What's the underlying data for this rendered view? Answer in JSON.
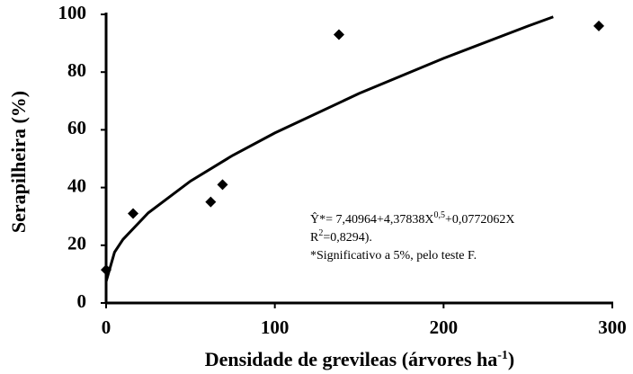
{
  "chart_data": {
    "type": "scatter",
    "x_label": {
      "text": "Densidade de grevileas (árvores ha",
      "sup": "-1",
      "end": ")"
    },
    "y_label": "Serapilheira (%)",
    "annotation": [
      [
        "Ŷ*= 7,40964+4,37838X",
        "0,5",
        "+0,0772062X"
      ],
      [
        "R",
        "2",
        "=0,8294)."
      ],
      [
        "*Significativo a 5%, pelo teste F."
      ]
    ],
    "xlim": [
      0,
      300
    ],
    "xticks": [
      0,
      100,
      200,
      300
    ],
    "ylim": [
      0,
      100
    ],
    "yticks": [
      0,
      20,
      40,
      60,
      80,
      100
    ],
    "series": [
      {
        "style": "markers",
        "color": "#000000",
        "x": [
          0,
          16,
          62,
          69,
          138,
          292
        ],
        "values": [
          11.5,
          31,
          35,
          41,
          93,
          96
        ]
      },
      {
        "style": "line",
        "color": "#000000",
        "x": [
          0,
          5,
          10,
          25,
          50,
          75,
          100,
          150,
          200,
          250,
          265
        ],
        "values": [
          7.41,
          17.59,
          22.03,
          31.23,
          42.23,
          51.12,
          58.91,
          72.61,
          84.77,
          95.94,
          99.14
        ]
      }
    ]
  }
}
